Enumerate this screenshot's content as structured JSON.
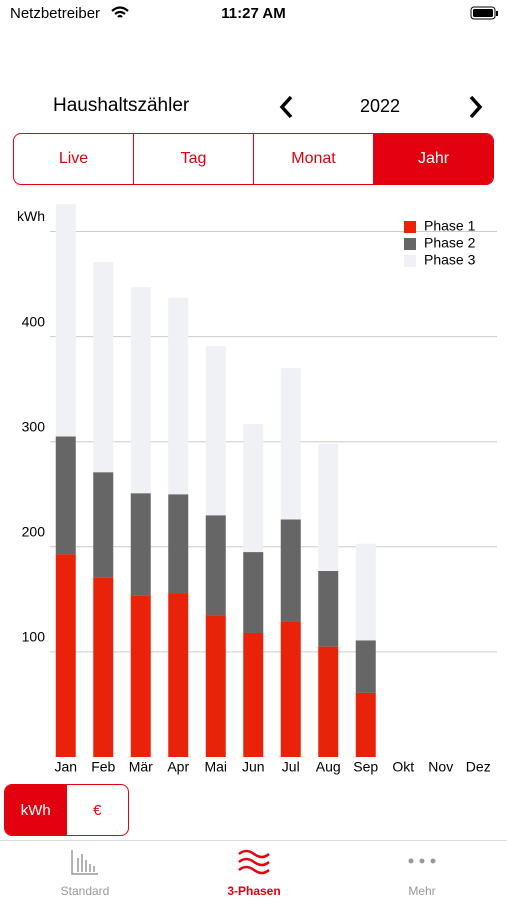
{
  "status_bar": {
    "carrier": "Netzbetreiber",
    "time": "11:27 AM"
  },
  "header": {
    "title": "Haushaltszähler",
    "year": "2022"
  },
  "tabs": [
    "Live",
    "Tag",
    "Monat",
    "Jahr"
  ],
  "chart_data": {
    "type": "stacked_bar",
    "categories": [
      "Jan",
      "Feb",
      "Mär",
      "Apr",
      "Mai",
      "Jun",
      "Jul",
      "Aug",
      "Sep",
      "Okt",
      "Nov",
      "Dez"
    ],
    "series": [
      {
        "name": "Phase 1",
        "color": "#e8230a",
        "values": [
          193,
          171,
          154,
          156,
          135,
          118,
          129,
          105,
          61,
          null,
          null,
          null
        ]
      },
      {
        "name": "Phase 2",
        "color": "#666666",
        "values": [
          112,
          100,
          97,
          94,
          95,
          77,
          97,
          72,
          50,
          null,
          null,
          null
        ]
      },
      {
        "name": "Phase 3",
        "color": "#eff1f5",
        "values": [
          221,
          200,
          196,
          187,
          161,
          122,
          144,
          121,
          92,
          null,
          null,
          null
        ]
      }
    ],
    "ylim": [
      0,
      530
    ],
    "yticks": [
      100,
      200,
      300,
      400,
      {
        "value": 500,
        "label": "kWh"
      }
    ],
    "grid": true,
    "legend": "top-right"
  },
  "unit_toggle": [
    "kWh",
    "€"
  ],
  "tab_bar": [
    "Standard",
    "3-Phasen",
    "Mehr"
  ]
}
